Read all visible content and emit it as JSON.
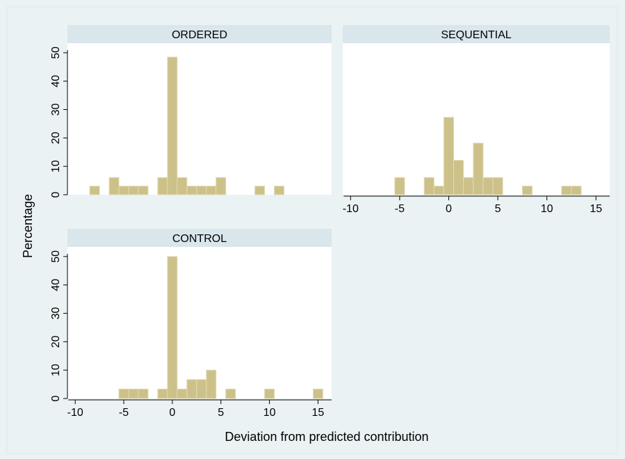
{
  "chart_data": [
    {
      "type": "histogram",
      "title": "ORDERED",
      "ylabel": "Percentage",
      "bins": [
        -8.5,
        -7.5,
        -6.5,
        -5.5,
        -4.5,
        -3.5,
        -2.5,
        -1.5,
        -0.5,
        0.5,
        1.5,
        2.5,
        3.5,
        4.5,
        5.5,
        6.5,
        7.5,
        8.5,
        9.5,
        10.5,
        11.5,
        12.5,
        13.5,
        14.5,
        15.5
      ],
      "values": [
        3.03,
        0,
        6.06,
        3.03,
        3.03,
        3.03,
        0,
        6.06,
        48.48,
        6.06,
        3.03,
        3.03,
        3.03,
        6.06,
        0,
        0,
        0,
        3.03,
        0,
        3.03,
        0,
        0,
        0,
        0
      ],
      "color": "#cdc18a",
      "xlim": [
        -10.8,
        16.4
      ],
      "ylim": [
        0,
        53.4
      ],
      "yticks": [
        0,
        10,
        20,
        30,
        40,
        50
      ]
    },
    {
      "type": "histogram",
      "title": "SEQUENTIAL",
      "bins": [
        -8.5,
        -7.5,
        -6.5,
        -5.5,
        -4.5,
        -3.5,
        -2.5,
        -1.5,
        -0.5,
        0.5,
        1.5,
        2.5,
        3.5,
        4.5,
        5.5,
        6.5,
        7.5,
        8.5,
        9.5,
        10.5,
        11.5,
        12.5,
        13.5,
        14.5,
        15.5
      ],
      "values": [
        0,
        0,
        0,
        6.06,
        0,
        0,
        6.06,
        3.03,
        27.27,
        12.12,
        6.06,
        18.18,
        6.06,
        6.06,
        0,
        0,
        3.03,
        0,
        0,
        0,
        3.03,
        3.03,
        0,
        0
      ],
      "color": "#cdc18a",
      "xlim": [
        -10.8,
        16.4
      ],
      "ylim": [
        0,
        53.4
      ],
      "xticks": [
        -10,
        -5,
        0,
        5,
        10,
        15
      ]
    },
    {
      "type": "histogram",
      "title": "CONTROL",
      "xlabel": "Deviation from predicted contribution",
      "bins": [
        -8.5,
        -7.5,
        -6.5,
        -5.5,
        -4.5,
        -3.5,
        -2.5,
        -1.5,
        -0.5,
        0.5,
        1.5,
        2.5,
        3.5,
        4.5,
        5.5,
        6.5,
        7.5,
        8.5,
        9.5,
        10.5,
        11.5,
        12.5,
        13.5,
        14.5,
        15.5
      ],
      "values": [
        0,
        0,
        0,
        3.33,
        3.33,
        3.33,
        0,
        3.33,
        50,
        3.33,
        6.67,
        6.67,
        10,
        0,
        3.33,
        0,
        0,
        0,
        3.33,
        0,
        0,
        0,
        0,
        3.33
      ],
      "color": "#cdc18a",
      "xlim": [
        -10.8,
        16.4
      ],
      "ylim": [
        0,
        53.4
      ],
      "xticks": [
        -10,
        -5,
        0,
        5,
        10,
        15
      ],
      "yticks": [
        0,
        10,
        20,
        30,
        40,
        50
      ]
    }
  ]
}
